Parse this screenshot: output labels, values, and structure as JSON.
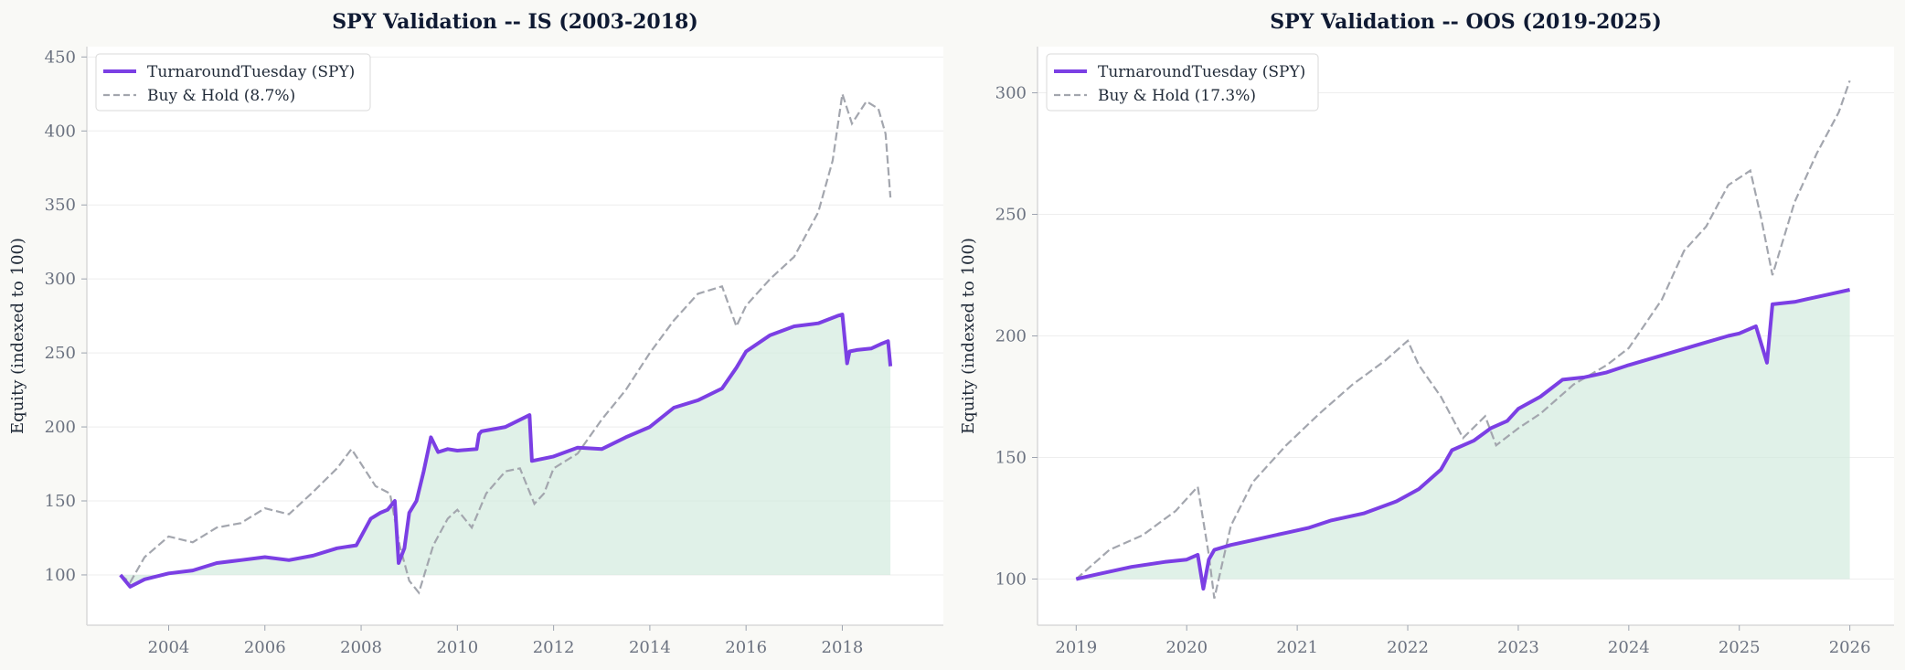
{
  "colors": {
    "strategy": "#7b3fe4",
    "buyhold": "#a3a6ae",
    "fill": "#cfeadc",
    "panel": "#ffffff",
    "background": "#f9f9f6"
  },
  "chart_data": [
    {
      "type": "line",
      "title": "SPY Validation -- IS (2003-2018)",
      "ylabel": "Equity (indexed to 100)",
      "xlabel": "",
      "xlim": [
        2002.3,
        2020.1
      ],
      "ylim": [
        66,
        457
      ],
      "xticks": [
        2004,
        2006,
        2008,
        2010,
        2012,
        2014,
        2016,
        2018
      ],
      "xtick_labels": [
        "2004",
        "2006",
        "2008",
        "2010",
        "2012",
        "2014",
        "2016",
        "2018"
      ],
      "yticks": [
        100,
        150,
        200,
        250,
        300,
        350,
        400,
        450
      ],
      "ytick_labels": [
        "100",
        "150",
        "200",
        "250",
        "300",
        "350",
        "400",
        "450"
      ],
      "grid": "horizontal",
      "legend": "top-left",
      "fill_between_strategy_and_100": true,
      "series": [
        {
          "name": "TurnaroundTuesday (SPY)",
          "style": "solid",
          "x": [
            2003.0,
            2003.2,
            2003.5,
            2004.0,
            2004.5,
            2005.0,
            2005.5,
            2006.0,
            2006.5,
            2007.0,
            2007.5,
            2007.9,
            2008.2,
            2008.4,
            2008.55,
            2008.7,
            2008.78,
            2008.9,
            2009.0,
            2009.15,
            2009.3,
            2009.45,
            2009.6,
            2009.8,
            2010.0,
            2010.4,
            2010.45,
            2010.5,
            2011.0,
            2011.5,
            2011.55,
            2011.7,
            2012.0,
            2012.5,
            2013.0,
            2013.5,
            2014.0,
            2014.5,
            2015.0,
            2015.5,
            2015.8,
            2016.0,
            2016.5,
            2017.0,
            2017.5,
            2017.9,
            2018.0,
            2018.1,
            2018.15,
            2018.3,
            2018.6,
            2018.8,
            2018.95,
            2019.0
          ],
          "y": [
            100,
            92,
            97,
            101,
            103,
            108,
            110,
            112,
            110,
            113,
            118,
            120,
            138,
            142,
            144,
            150,
            108,
            118,
            142,
            150,
            170,
            193,
            183,
            185,
            184,
            185,
            195,
            197,
            200,
            208,
            177,
            178,
            180,
            186,
            185,
            193,
            200,
            213,
            218,
            226,
            240,
            251,
            262,
            268,
            270,
            275,
            276,
            243,
            251,
            252,
            253,
            256,
            258,
            241
          ]
        },
        {
          "name": "Buy & Hold  (8.7%)",
          "style": "dashed",
          "x": [
            2003.0,
            2003.2,
            2003.5,
            2004.0,
            2004.5,
            2005.0,
            2005.5,
            2006.0,
            2006.5,
            2007.0,
            2007.5,
            2007.8,
            2008.0,
            2008.3,
            2008.6,
            2008.8,
            2009.0,
            2009.2,
            2009.5,
            2009.8,
            2010.0,
            2010.3,
            2010.6,
            2011.0,
            2011.3,
            2011.6,
            2011.8,
            2012.0,
            2012.5,
            2013.0,
            2013.5,
            2014.0,
            2014.5,
            2015.0,
            2015.5,
            2015.8,
            2016.0,
            2016.5,
            2017.0,
            2017.5,
            2017.8,
            2018.0,
            2018.2,
            2018.5,
            2018.75,
            2018.9,
            2019.0
          ],
          "y": [
            100,
            95,
            112,
            126,
            122,
            132,
            135,
            145,
            141,
            156,
            172,
            185,
            175,
            160,
            155,
            120,
            96,
            88,
            120,
            138,
            144,
            132,
            155,
            170,
            172,
            148,
            155,
            172,
            182,
            205,
            225,
            250,
            272,
            290,
            295,
            268,
            282,
            300,
            315,
            345,
            380,
            425,
            405,
            420,
            415,
            398,
            355
          ]
        }
      ]
    },
    {
      "type": "line",
      "title": "SPY Validation -- OOS (2019-2025)",
      "ylabel": "Equity (indexed to 100)",
      "xlabel": "",
      "xlim": [
        2018.65,
        2026.4
      ],
      "ylim": [
        81,
        319
      ],
      "xticks": [
        2019,
        2020,
        2021,
        2022,
        2023,
        2024,
        2025,
        2026
      ],
      "xtick_labels": [
        "2019",
        "2020",
        "2021",
        "2022",
        "2023",
        "2024",
        "2025",
        "2026"
      ],
      "yticks": [
        100,
        150,
        200,
        250,
        300
      ],
      "ytick_labels": [
        "100",
        "150",
        "200",
        "250",
        "300"
      ],
      "grid": "horizontal",
      "legend": "top-left",
      "fill_between_strategy_and_100": true,
      "series": [
        {
          "name": "TurnaroundTuesday (SPY)",
          "style": "solid",
          "x": [
            2019.0,
            2019.2,
            2019.5,
            2019.8,
            2020.0,
            2020.1,
            2020.15,
            2020.2,
            2020.25,
            2020.4,
            2020.6,
            2020.9,
            2021.1,
            2021.3,
            2021.6,
            2021.9,
            2022.1,
            2022.3,
            2022.4,
            2022.6,
            2022.75,
            2022.9,
            2023.0,
            2023.2,
            2023.4,
            2023.6,
            2023.8,
            2024.0,
            2024.3,
            2024.6,
            2024.9,
            2025.0,
            2025.15,
            2025.25,
            2025.3,
            2025.5,
            2025.6,
            2025.8,
            2026.0
          ],
          "y": [
            100,
            102,
            105,
            107,
            108,
            110,
            96,
            108,
            112,
            114,
            116,
            119,
            121,
            124,
            127,
            132,
            137,
            145,
            153,
            157,
            162,
            165,
            170,
            175,
            182,
            183,
            185,
            188,
            192,
            196,
            200,
            201,
            204,
            189,
            213,
            214,
            215,
            217,
            219
          ]
        },
        {
          "name": "Buy & Hold  (17.3%)",
          "style": "dashed",
          "x": [
            2019.0,
            2019.3,
            2019.6,
            2019.9,
            2020.0,
            2020.1,
            2020.2,
            2020.25,
            2020.4,
            2020.6,
            2020.9,
            2021.2,
            2021.5,
            2021.8,
            2022.0,
            2022.1,
            2022.3,
            2022.5,
            2022.7,
            2022.8,
            2023.0,
            2023.2,
            2023.5,
            2023.8,
            2024.0,
            2024.3,
            2024.5,
            2024.7,
            2024.9,
            2025.1,
            2025.2,
            2025.3,
            2025.5,
            2025.7,
            2025.9,
            2026.0
          ],
          "y": [
            100,
            112,
            118,
            128,
            133,
            138,
            110,
            92,
            122,
            140,
            155,
            168,
            180,
            190,
            198,
            188,
            175,
            158,
            167,
            155,
            162,
            168,
            180,
            188,
            195,
            215,
            235,
            245,
            262,
            268,
            248,
            225,
            255,
            275,
            292,
            305
          ]
        }
      ]
    }
  ]
}
